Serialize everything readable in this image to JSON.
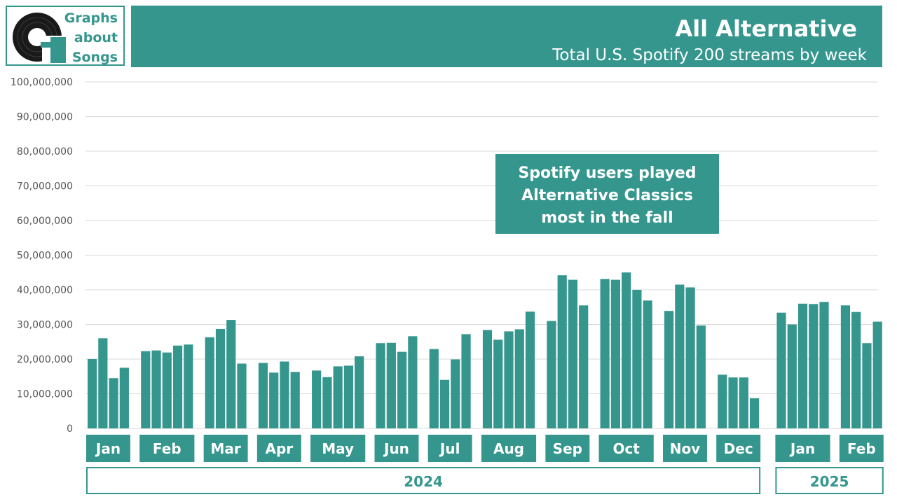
{
  "logo": {
    "line1": "Graphs",
    "line2": "about",
    "line3": "Songs"
  },
  "header": {
    "title": "All Alternative",
    "subtitle": "Total U.S. Spotify 200 streams by week"
  },
  "annotation": {
    "lines": [
      "Spotify users played",
      "Alternative Classics",
      "most in the fall"
    ]
  },
  "colors": {
    "accent": "#35968e",
    "grid": "#d9d9d9"
  },
  "chart_data": {
    "type": "bar",
    "title": "All Alternative",
    "subtitle": "Total U.S. Spotify 200 streams by week",
    "xlabel": "",
    "ylabel": "",
    "ylim": [
      0,
      100000000
    ],
    "yticks": [
      0,
      10000000,
      20000000,
      30000000,
      40000000,
      50000000,
      60000000,
      70000000,
      80000000,
      90000000,
      100000000
    ],
    "ytick_labels": [
      "0",
      "10,000,000",
      "20,000,000",
      "30,000,000",
      "40,000,000",
      "50,000,000",
      "60,000,000",
      "70,000,000",
      "80,000,000",
      "90,000,000",
      "100,000,000"
    ],
    "grid": true,
    "legend": "none",
    "groups": [
      {
        "month": "Jan",
        "year": "2024",
        "values": [
          20000000,
          26000000,
          14500000,
          17500000
        ]
      },
      {
        "month": "Feb",
        "year": "2024",
        "values": [
          22300000,
          22500000,
          21900000,
          23900000,
          24200000
        ]
      },
      {
        "month": "Mar",
        "year": "2024",
        "values": [
          26300000,
          28700000,
          31300000,
          18700000
        ]
      },
      {
        "month": "Apr",
        "year": "2024",
        "values": [
          18900000,
          16100000,
          19300000,
          16300000
        ]
      },
      {
        "month": "May",
        "year": "2024",
        "values": [
          16700000,
          14800000,
          17900000,
          18100000,
          20800000
        ]
      },
      {
        "month": "Jun",
        "year": "2024",
        "values": [
          24600000,
          24700000,
          22100000,
          26600000
        ]
      },
      {
        "month": "Jul",
        "year": "2024",
        "values": [
          22900000,
          14000000,
          19900000,
          27200000
        ]
      },
      {
        "month": "Aug",
        "year": "2024",
        "values": [
          28400000,
          25600000,
          28000000,
          28600000,
          33700000
        ]
      },
      {
        "month": "Sep",
        "year": "2024",
        "values": [
          31000000,
          44200000,
          42900000,
          35500000
        ]
      },
      {
        "month": "Oct",
        "year": "2024",
        "values": [
          43100000,
          42900000,
          45000000,
          40000000,
          36900000
        ]
      },
      {
        "month": "Nov",
        "year": "2024",
        "values": [
          33900000,
          41500000,
          40700000,
          29700000
        ]
      },
      {
        "month": "Dec",
        "year": "2024",
        "values": [
          15500000,
          14700000,
          14700000,
          8700000
        ]
      },
      {
        "month": "Jan",
        "year": "2025",
        "values": [
          33400000,
          30000000,
          36000000,
          35900000,
          36500000
        ]
      },
      {
        "month": "Feb",
        "year": "2025",
        "values": [
          35500000,
          33600000,
          24600000,
          30800000
        ]
      }
    ],
    "years": [
      "2024",
      "2025"
    ]
  }
}
